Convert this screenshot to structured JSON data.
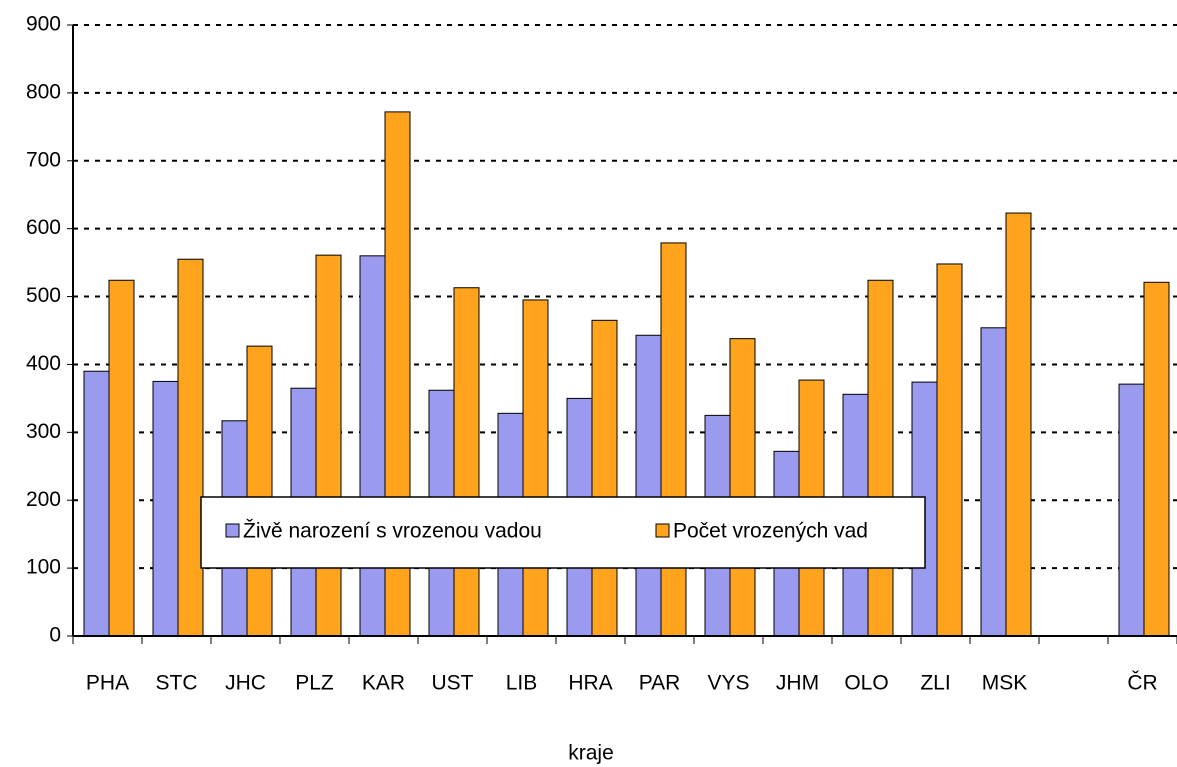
{
  "chart_data": {
    "type": "bar",
    "x_label": "kraje",
    "categories": [
      "PHA",
      "STC",
      "JHC",
      "PLZ",
      "KAR",
      "UST",
      "LIB",
      "HRA",
      "PAR",
      "VYS",
      "JHM",
      "OLO",
      "ZLI",
      "MSK",
      null,
      "ČR"
    ],
    "series": [
      {
        "name": "Živě narození s vrozenou vadou",
        "color": "#9a9aee",
        "values": [
          390,
          375,
          317,
          365,
          560,
          362,
          328,
          350,
          443,
          325,
          272,
          356,
          374,
          454,
          null,
          371
        ]
      },
      {
        "name": "Počet vrozených vad",
        "color": "#ffa41c",
        "values": [
          524,
          555,
          427,
          561,
          772,
          513,
          495,
          465,
          579,
          438,
          377,
          524,
          548,
          623,
          null,
          521
        ]
      }
    ],
    "ylim": [
      0,
      900
    ],
    "yticks": [
      0,
      100,
      200,
      300,
      400,
      500,
      600,
      700,
      800,
      900
    ],
    "grid": true
  }
}
